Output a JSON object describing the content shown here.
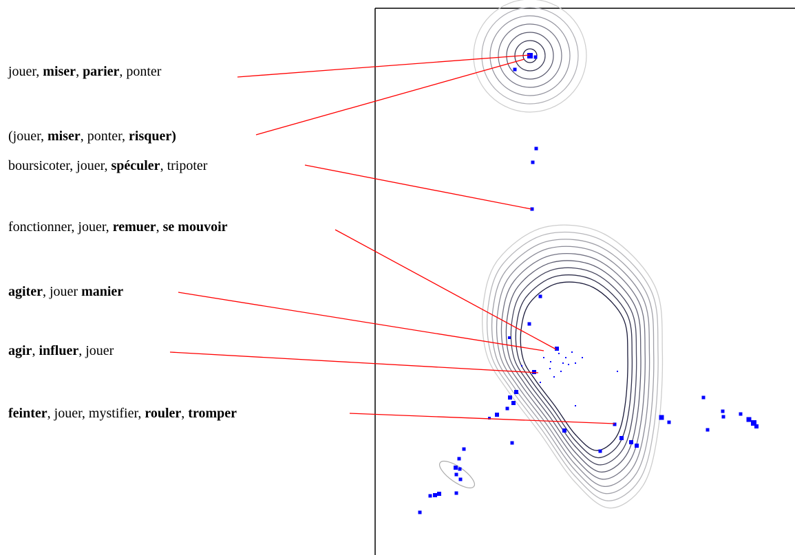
{
  "labels": [
    {
      "id": "jouer-miser-parier-ponter",
      "parts": [
        {
          "text": "jouer, ",
          "bold": false
        },
        {
          "text": "miser",
          "bold": true
        },
        {
          "text": ", ",
          "bold": false
        },
        {
          "text": "parier",
          "bold": true
        },
        {
          "text": ", ponter",
          "bold": false
        }
      ]
    },
    {
      "id": "jouer-miser-ponter-risquer",
      "parts": [
        {
          "text": "(jouer, ",
          "bold": false
        },
        {
          "text": "miser",
          "bold": true
        },
        {
          "text": ", ponter, ",
          "bold": false
        },
        {
          "text": "risquer)",
          "bold": true
        }
      ]
    },
    {
      "id": "boursicoter-speculer",
      "parts": [
        {
          "text": "boursicoter, jouer, ",
          "bold": false
        },
        {
          "text": "spéculer",
          "bold": true
        },
        {
          "text": ", tripoter",
          "bold": false
        }
      ]
    },
    {
      "id": "fonctionner-remuer",
      "parts": [
        {
          "text": "fonctionner, jouer, ",
          "bold": false
        },
        {
          "text": "remuer",
          "bold": true
        },
        {
          "text": ", ",
          "bold": false
        },
        {
          "text": "se mouvoir",
          "bold": true
        }
      ]
    },
    {
      "id": "agiter-manier",
      "parts": [
        {
          "text": "agiter",
          "bold": true
        },
        {
          "text": ", jouer ",
          "bold": false
        },
        {
          "text": "manier",
          "bold": true
        }
      ]
    },
    {
      "id": "agir-influer",
      "parts": [
        {
          "text": "agir",
          "bold": true
        },
        {
          "text": ", ",
          "bold": false
        },
        {
          "text": "influer",
          "bold": true
        },
        {
          "text": ", jouer",
          "bold": false
        }
      ]
    },
    {
      "id": "feinter-tromper",
      "parts": [
        {
          "text": "feinter",
          "bold": true
        },
        {
          "text": ", jouer, mystifier, ",
          "bold": false
        },
        {
          "text": "rouler",
          "bold": true
        },
        {
          "text": ", ",
          "bold": false
        },
        {
          "text": "tromper",
          "bold": true
        }
      ]
    }
  ],
  "colors": {
    "leader_line": "#ff0000",
    "points": "#0000ff",
    "contour_dark": "#1a1a3a",
    "contour_light": "#c8c8c8",
    "frame": "#000000"
  }
}
